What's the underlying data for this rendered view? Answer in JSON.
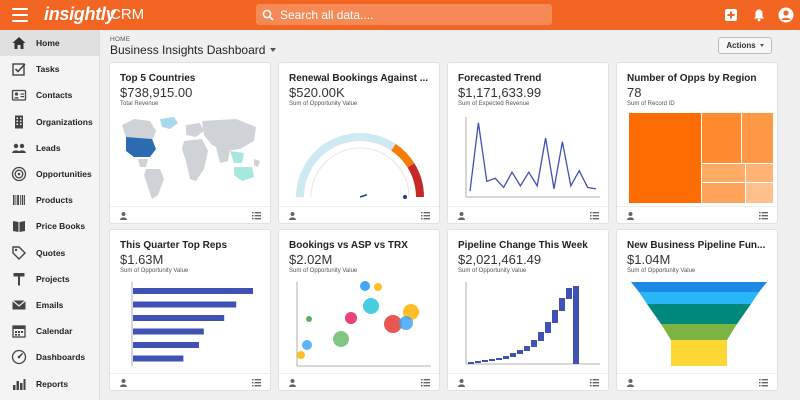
{
  "app": {
    "logo": "insightly",
    "product": "CRM",
    "search_placeholder": "Search all data....",
    "accent": "#f26522"
  },
  "sidebar": {
    "items": [
      {
        "label": "Home",
        "icon": "home-icon",
        "active": true
      },
      {
        "label": "Tasks",
        "icon": "tasks-icon"
      },
      {
        "label": "Contacts",
        "icon": "contacts-icon"
      },
      {
        "label": "Organizations",
        "icon": "organizations-icon"
      },
      {
        "label": "Leads",
        "icon": "leads-icon"
      },
      {
        "label": "Opportunities",
        "icon": "opportunities-icon"
      },
      {
        "label": "Products",
        "icon": "products-icon"
      },
      {
        "label": "Price Books",
        "icon": "price-books-icon"
      },
      {
        "label": "Quotes",
        "icon": "quotes-icon"
      },
      {
        "label": "Projects",
        "icon": "projects-icon"
      },
      {
        "label": "Emails",
        "icon": "emails-icon"
      },
      {
        "label": "Calendar",
        "icon": "calendar-icon"
      },
      {
        "label": "Dashboards",
        "icon": "dashboards-icon"
      },
      {
        "label": "Reports",
        "icon": "reports-icon"
      }
    ]
  },
  "main": {
    "breadcrumb": "HOME",
    "title": "Business Insights Dashboard",
    "actions_label": "Actions"
  },
  "cards": [
    {
      "title": "Top 5 Countries",
      "value": "$738,915.00",
      "subtitle": "Total Revenue",
      "viz": "map"
    },
    {
      "title": "Renewal Bookings Against ...",
      "value": "$520.00K",
      "subtitle": "Sum of Opportunity Value",
      "viz": "gauge",
      "gauge_fraction": 0.55
    },
    {
      "title": "Forecasted Trend",
      "value": "$1,171,633.99",
      "subtitle": "Sum of Expected Revenue",
      "viz": "line",
      "series": [
        5,
        95,
        18,
        22,
        10,
        30,
        12,
        30,
        12,
        75,
        8,
        70,
        12,
        32,
        10,
        8
      ]
    },
    {
      "title": "Number of Opps by Region",
      "value": "78",
      "subtitle": "Sum of Record ID",
      "viz": "treemap"
    },
    {
      "title": "This Quarter Top Reps",
      "value": "$1.63M",
      "subtitle": "Sum of Opportunity Value",
      "viz": "bar",
      "values": [
        100,
        86,
        76,
        59,
        55,
        42
      ]
    },
    {
      "title": "Bookings vs ASP vs TRX",
      "value": "$2.02M",
      "subtitle": "Sum of Opportunity Value",
      "viz": "bubble"
    },
    {
      "title": "Pipeline Change This Week",
      "value": "$2,021,461.49",
      "subtitle": "Sum of Opportunity Value",
      "viz": "waterfall"
    },
    {
      "title": "New Business Pipeline Fun...",
      "value": "$1.04M",
      "subtitle": "Sum of Opportunity Value",
      "viz": "funnel"
    }
  ]
}
